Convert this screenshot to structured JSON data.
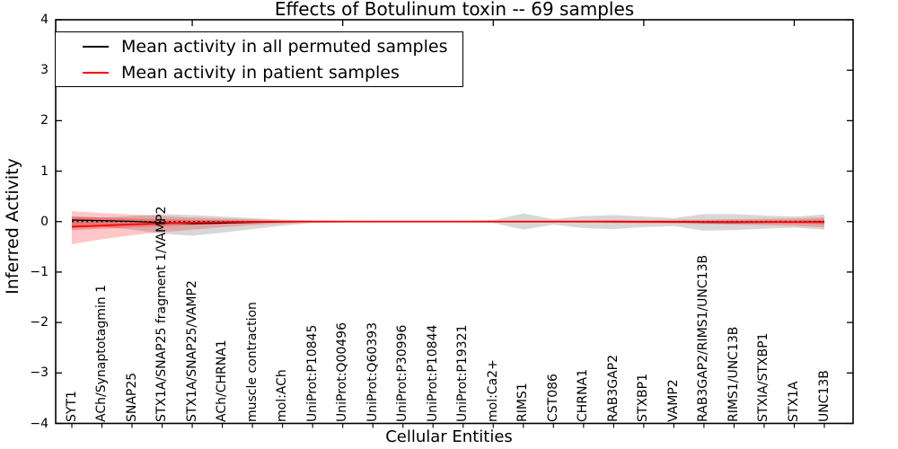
{
  "title": "Effects of Botulinum toxin -- 69 samples",
  "axes": {
    "x_label": "Cellular Entities",
    "y_label": "Inferred Activity",
    "y_tick_labels": [
      "4",
      "3",
      "2",
      "1",
      "0",
      "−1",
      "−2",
      "−3",
      "−4"
    ]
  },
  "legend": {
    "entries": [
      {
        "label": "Mean activity in all permuted samples",
        "color": "#000000"
      },
      {
        "label": "Mean activity in patient samples",
        "color": "#ff0000"
      }
    ]
  },
  "chart_data": {
    "type": "line",
    "title": "Effects of Botulinum toxin -- 69 samples",
    "xlabel": "Cellular Entities",
    "ylabel": "Inferred Activity",
    "ylim": [
      -4,
      4
    ],
    "y_ticks": [
      4,
      3,
      2,
      1,
      0,
      -1,
      -2,
      -3,
      -4
    ],
    "grid": false,
    "legend_position": "upper left",
    "top_tick_categories": [
      4,
      9,
      14,
      19,
      24
    ],
    "categories": [
      "SYT1",
      "ACh/Synaptotagmin 1",
      "SNAP25",
      "STX1A/SNAP25 fragment 1/VAMP2",
      "STX1A/SNAP25/VAMP2",
      "ACh/CHRNA1",
      "muscle contraction",
      "mol:ACh",
      "UniProt:P10845",
      "UniProt:Q00496",
      "UniProt:Q60393",
      "UniProt:P30996",
      "UniProt:P10844",
      "UniProt:P19321",
      "mol:Ca2+",
      "RIMS1",
      "CST086",
      "CHRNA1",
      "RAB3GAP2",
      "STXBP1",
      "VAMP2",
      "RAB3GAP2/RIMS1/UNC13B",
      "RIMS1/UNC13B",
      "STXIA/STXBP1",
      "STX1A",
      "UNC13B"
    ],
    "reference_line": {
      "y": 0,
      "style": "dotted",
      "color": "#000000"
    },
    "series": [
      {
        "name": "Mean activity in all permuted samples",
        "color": "#000000",
        "style": "solid",
        "width": 1.3,
        "values": [
          0.03,
          0.02,
          0.005,
          -0.02,
          -0.04,
          -0.03,
          -0.015,
          -0.005,
          0,
          0,
          0,
          0,
          0,
          0,
          0,
          0,
          0,
          0,
          -0.003,
          -0.005,
          -0.008,
          -0.015,
          -0.018,
          -0.012,
          -0.008,
          -0.005
        ]
      },
      {
        "name": "Mean activity in patient samples",
        "color": "#ff0000",
        "style": "solid",
        "width": 1.7,
        "values": [
          -0.1,
          -0.08,
          -0.055,
          -0.035,
          -0.02,
          -0.01,
          -0.004,
          -0.001,
          0,
          0,
          0,
          0,
          0,
          0,
          0,
          0,
          0,
          0,
          0,
          -0.002,
          -0.004,
          -0.007,
          -0.009,
          -0.009,
          -0.01,
          -0.012
        ]
      }
    ],
    "bands": [
      {
        "name": "permuted-samples-range",
        "color": "rgba(110,110,110,0.28)",
        "upper": [
          0.1,
          0.08,
          0.11,
          0.15,
          0.13,
          0.1,
          0.07,
          0.04,
          0.02,
          0.015,
          0.015,
          0.015,
          0.015,
          0.015,
          0.03,
          0.16,
          0.05,
          0.11,
          0.13,
          0.1,
          0.07,
          0.15,
          0.15,
          0.12,
          0.1,
          0.14
        ],
        "lower": [
          -0.13,
          -0.1,
          -0.16,
          -0.24,
          -0.28,
          -0.22,
          -0.15,
          -0.08,
          -0.03,
          -0.015,
          -0.015,
          -0.015,
          -0.015,
          -0.015,
          -0.03,
          -0.16,
          -0.06,
          -0.13,
          -0.15,
          -0.11,
          -0.09,
          -0.18,
          -0.17,
          -0.14,
          -0.12,
          -0.16
        ]
      },
      {
        "name": "patient-samples-range-outer",
        "color": "rgba(255,0,0,0.22)",
        "upper": [
          0.21,
          0.17,
          0.14,
          0.11,
          0.08,
          0.06,
          0.045,
          0.03,
          0.02,
          0.015,
          0.012,
          0.012,
          0.012,
          0.012,
          0.015,
          0.018,
          0.02,
          0.025,
          0.028,
          0.03,
          0.035,
          0.04,
          0.05,
          0.055,
          0.065,
          0.085
        ],
        "lower": [
          -0.45,
          -0.35,
          -0.27,
          -0.21,
          -0.16,
          -0.11,
          -0.07,
          -0.04,
          -0.02,
          -0.015,
          -0.012,
          -0.012,
          -0.012,
          -0.012,
          -0.015,
          -0.018,
          -0.02,
          -0.025,
          -0.03,
          -0.035,
          -0.04,
          -0.05,
          -0.06,
          -0.07,
          -0.085,
          -0.115
        ]
      },
      {
        "name": "patient-samples-range-inner",
        "color": "rgba(255,0,0,0.28)",
        "upper": [
          0.1,
          0.08,
          0.06,
          0.05,
          0.035,
          0.027,
          0.02,
          0.013,
          0.009,
          0.007,
          0.006,
          0.006,
          0.006,
          0.006,
          0.007,
          0.008,
          0.009,
          0.011,
          0.013,
          0.014,
          0.016,
          0.018,
          0.022,
          0.025,
          0.03,
          0.04
        ],
        "lower": [
          -0.17,
          -0.14,
          -0.11,
          -0.09,
          -0.07,
          -0.05,
          -0.032,
          -0.018,
          -0.009,
          -0.007,
          -0.006,
          -0.006,
          -0.006,
          -0.006,
          -0.007,
          -0.008,
          -0.009,
          -0.011,
          -0.013,
          -0.016,
          -0.018,
          -0.022,
          -0.027,
          -0.031,
          -0.038,
          -0.052
        ]
      }
    ]
  }
}
